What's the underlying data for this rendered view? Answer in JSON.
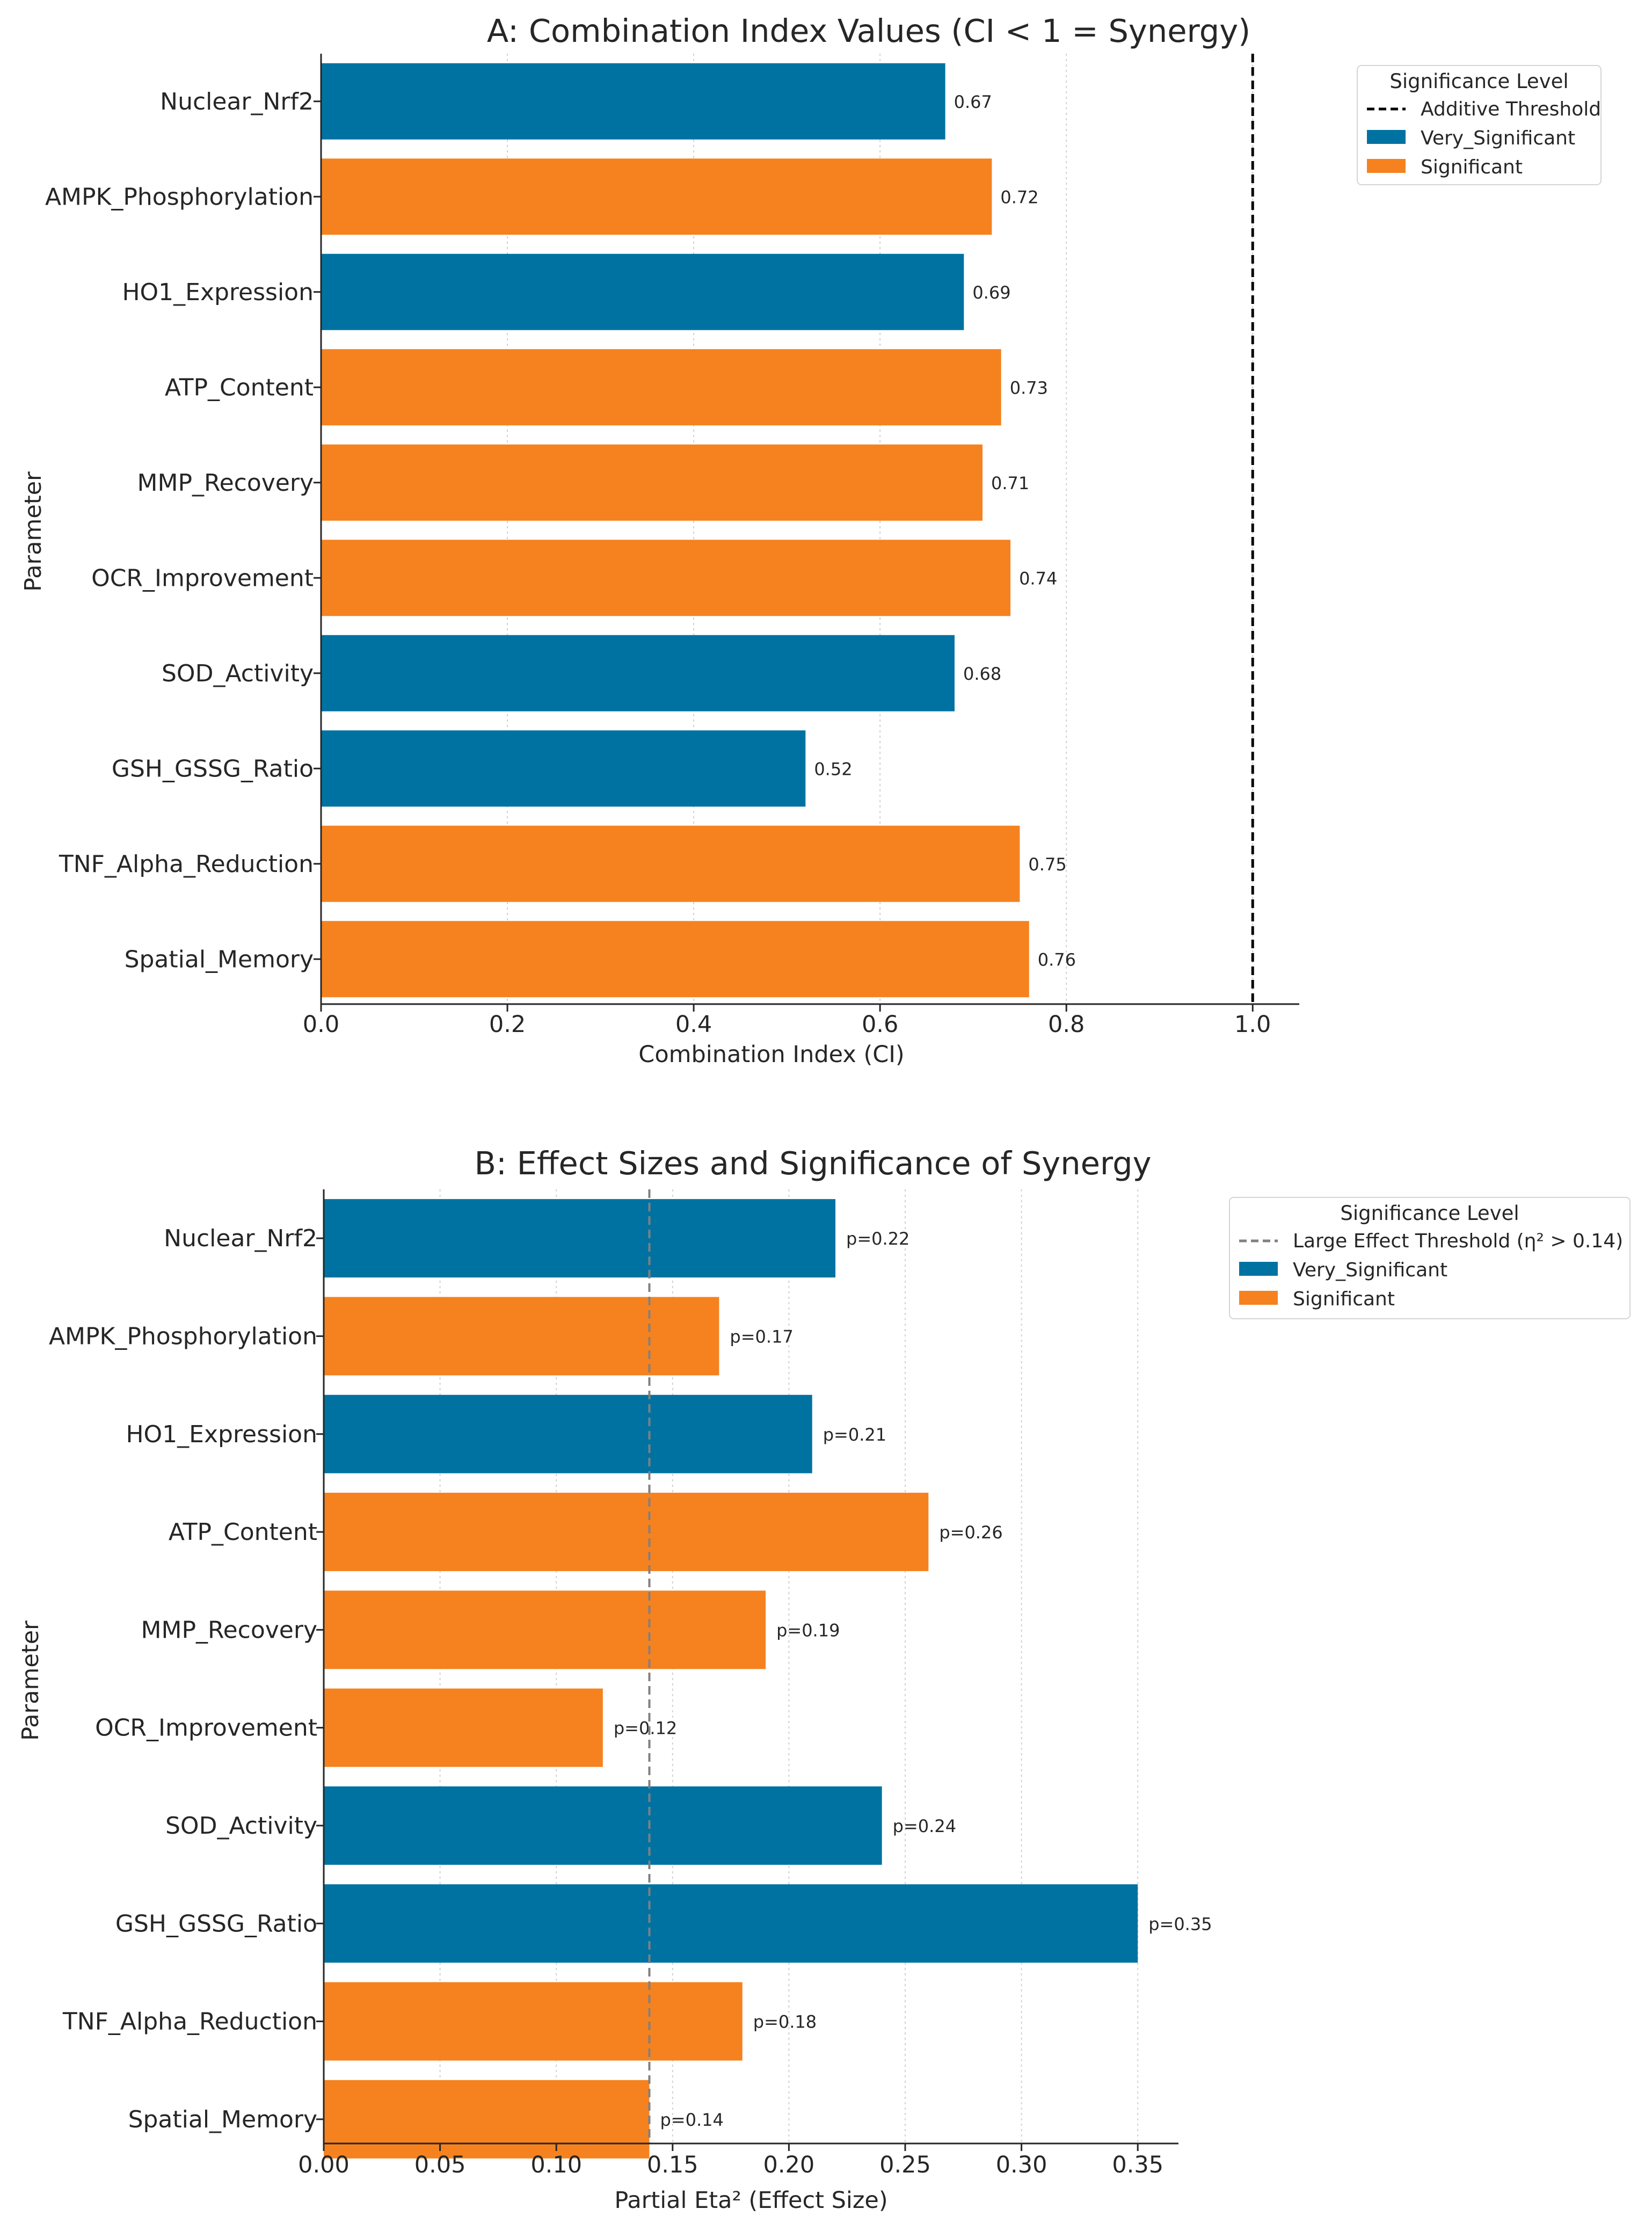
{
  "chart_data": [
    {
      "type": "bar",
      "orientation": "horizontal",
      "title": "A: Combination Index Values (CI < 1 = Synergy)",
      "xlabel": "Combination Index (CI)",
      "ylabel": "Parameter",
      "xlim": [
        0.0,
        1.05
      ],
      "xticks": [
        "0.0",
        "0.2",
        "0.4",
        "0.6",
        "0.8",
        "1.0"
      ],
      "xtick_values": [
        0.0,
        0.2,
        0.4,
        0.6,
        0.8,
        1.0
      ],
      "grid": "vertical dotted",
      "categories": [
        "Nuclear_Nrf2",
        "AMPK_Phosphorylation",
        "HO1_Expression",
        "ATP_Content",
        "MMP_Recovery",
        "OCR_Improvement",
        "SOD_Activity",
        "GSH_GSSG_Ratio",
        "TNF_Alpha_Reduction",
        "Spatial_Memory"
      ],
      "values": [
        0.67,
        0.72,
        0.69,
        0.73,
        0.71,
        0.74,
        0.68,
        0.52,
        0.75,
        0.76
      ],
      "bar_labels": [
        "0.67",
        "0.72",
        "0.69",
        "0.73",
        "0.71",
        "0.74",
        "0.68",
        "0.52",
        "0.75",
        "0.76"
      ],
      "significance": [
        "Very_Significant",
        "Significant",
        "Very_Significant",
        "Significant",
        "Significant",
        "Significant",
        "Very_Significant",
        "Very_Significant",
        "Significant",
        "Significant"
      ],
      "reference_line": {
        "value": 1.0,
        "style": "dashed",
        "color": "#000000",
        "label": "Additive Threshold"
      },
      "legend": {
        "title": "Significance Level",
        "placement": "outside-top-right",
        "entries": [
          {
            "label": "Additive Threshold",
            "kind": "line",
            "style": "dashed",
            "color": "#000000"
          },
          {
            "label": "Very_Significant",
            "kind": "patch",
            "color": "#0072a2"
          },
          {
            "label": "Significant",
            "kind": "patch",
            "color": "#f5821f"
          }
        ]
      }
    },
    {
      "type": "bar",
      "orientation": "horizontal",
      "title": "B: Effect Sizes and Significance of Synergy",
      "xlabel": "Partial Eta² (Effect Size)",
      "ylabel": "Parameter",
      "xlim": [
        0.0,
        0.3675
      ],
      "xticks": [
        "0.00",
        "0.05",
        "0.10",
        "0.15",
        "0.20",
        "0.25",
        "0.30",
        "0.35"
      ],
      "xtick_values": [
        0.0,
        0.05,
        0.1,
        0.15,
        0.2,
        0.25,
        0.3,
        0.35
      ],
      "grid": "vertical dotted",
      "categories": [
        "Nuclear_Nrf2",
        "AMPK_Phosphorylation",
        "HO1_Expression",
        "ATP_Content",
        "MMP_Recovery",
        "OCR_Improvement",
        "SOD_Activity",
        "GSH_GSSG_Ratio",
        "TNF_Alpha_Reduction",
        "Spatial_Memory"
      ],
      "values": [
        0.22,
        0.17,
        0.21,
        0.26,
        0.19,
        0.12,
        0.24,
        0.35,
        0.18,
        0.14
      ],
      "bar_labels": [
        "p=0.22",
        "p=0.17",
        "p=0.21",
        "p=0.26",
        "p=0.19",
        "p=0.12",
        "p=0.24",
        "p=0.35",
        "p=0.18",
        "p=0.14"
      ],
      "significance": [
        "Very_Significant",
        "Significant",
        "Very_Significant",
        "Significant",
        "Significant",
        "Significant",
        "Very_Significant",
        "Very_Significant",
        "Significant",
        "Significant"
      ],
      "reference_line": {
        "value": 0.14,
        "style": "dashed",
        "color": "#808080",
        "label": "Large Effect Threshold (η² > 0.14)"
      },
      "legend": {
        "title": "Significance Level",
        "placement": "outside-top-right",
        "entries": [
          {
            "label": "Large Effect Threshold (η² > 0.14)",
            "kind": "line",
            "style": "dashed",
            "color": "#808080"
          },
          {
            "label": "Very_Significant",
            "kind": "patch",
            "color": "#0072a2"
          },
          {
            "label": "Significant",
            "kind": "patch",
            "color": "#f5821f"
          }
        ]
      }
    }
  ],
  "colors": {
    "Very_Significant": "#0072a2",
    "Significant": "#f5821f",
    "axis": "#262626",
    "grid": "#d0d0d0"
  }
}
